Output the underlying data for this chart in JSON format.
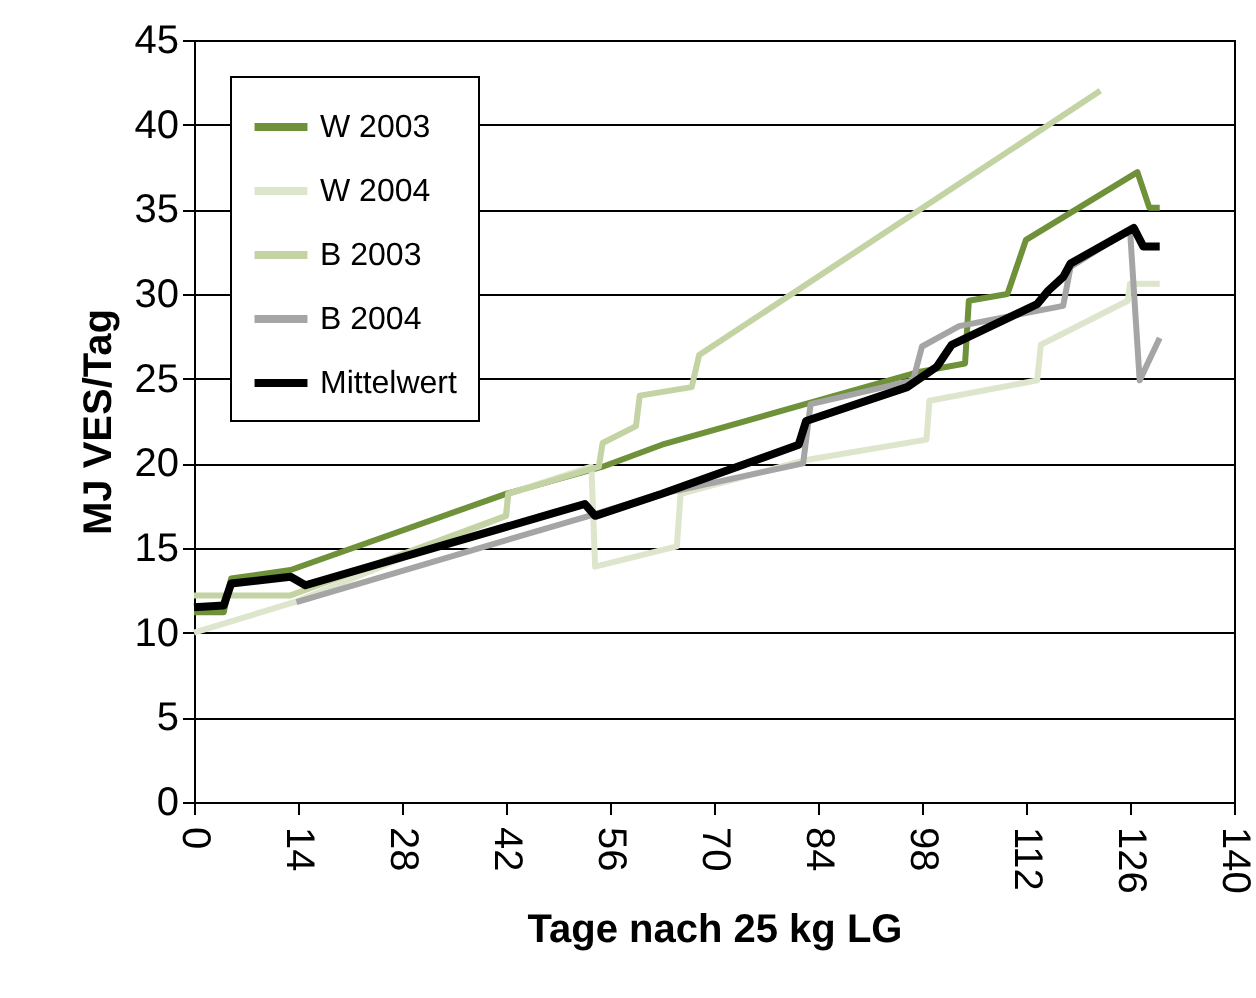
{
  "chart_data": {
    "type": "line",
    "xlabel": "Tage nach 25 kg LG",
    "ylabel": "MJ VES/Tag",
    "xlim": [
      0,
      140
    ],
    "xticks": [
      0,
      14,
      28,
      42,
      56,
      70,
      84,
      98,
      112,
      126,
      140
    ],
    "ylim": [
      0,
      45
    ],
    "yticks": [
      0,
      5,
      10,
      15,
      20,
      25,
      30,
      35,
      40,
      45
    ],
    "grid": "y",
    "legend": "top left",
    "line_style": "solid",
    "marker": "none",
    "series": [
      {
        "name": "W 2003",
        "color": "#6e9139",
        "x": [
          0,
          4,
          5,
          13,
          42,
          55,
          63,
          97.6,
          103.8,
          104.3,
          109.5,
          112,
          127,
          128.6,
          130
        ],
        "values": [
          11.2,
          11.2,
          13.2,
          13.7,
          18.2,
          19.8,
          21.1,
          25.4,
          25.9,
          29.6,
          30,
          33.2,
          37.2,
          35.1,
          35.1
        ]
      },
      {
        "name": "W 2004",
        "color": "#dde5cc",
        "x": [
          0,
          13.5,
          42,
          42.3,
          53.5,
          54,
          65,
          65.5,
          82.4,
          98.6,
          99,
          113.5,
          114,
          125.7,
          126,
          130
        ],
        "values": [
          10,
          11.8,
          16.9,
          18.2,
          19.8,
          13.9,
          15.1,
          18.2,
          20.2,
          21.4,
          23.7,
          24.9,
          27,
          29.6,
          30.6,
          30.6
        ]
      },
      {
        "name": "B 2003",
        "color": "#c3d3a3",
        "x": [
          0,
          13,
          42,
          42.3,
          54.5,
          55,
          59.5,
          60,
          67,
          68,
          122
        ],
        "values": [
          12.2,
          12.2,
          16.9,
          18.2,
          19.8,
          21.2,
          22.2,
          24,
          24.5,
          26.4,
          42
        ]
      },
      {
        "name": "B 2004",
        "color": "#a5a5a5",
        "x": [
          13.8,
          52.4,
          63,
          82,
          83,
          96.8,
          98,
          103,
          117,
          118,
          126,
          127.3,
          130
        ],
        "values": [
          11.8,
          16.8,
          18.2,
          20,
          23.5,
          24.9,
          26.9,
          28.1,
          29.3,
          31.6,
          33.8,
          24.9,
          27.4
        ]
      },
      {
        "name": "Mittelwert",
        "color": "#000000",
        "x": [
          0,
          4,
          5,
          13,
          15,
          52.6,
          54,
          63,
          81.4,
          82.4,
          96,
          100,
          102,
          113.5,
          115,
          117,
          118,
          126.5,
          127.8,
          130
        ],
        "values": [
          11.5,
          11.6,
          12.9,
          13.3,
          12.8,
          17.6,
          16.9,
          18.2,
          21.1,
          22.5,
          24.5,
          25.7,
          27,
          29.4,
          30.2,
          31,
          31.8,
          33.9,
          32.8,
          32.8
        ]
      }
    ]
  }
}
